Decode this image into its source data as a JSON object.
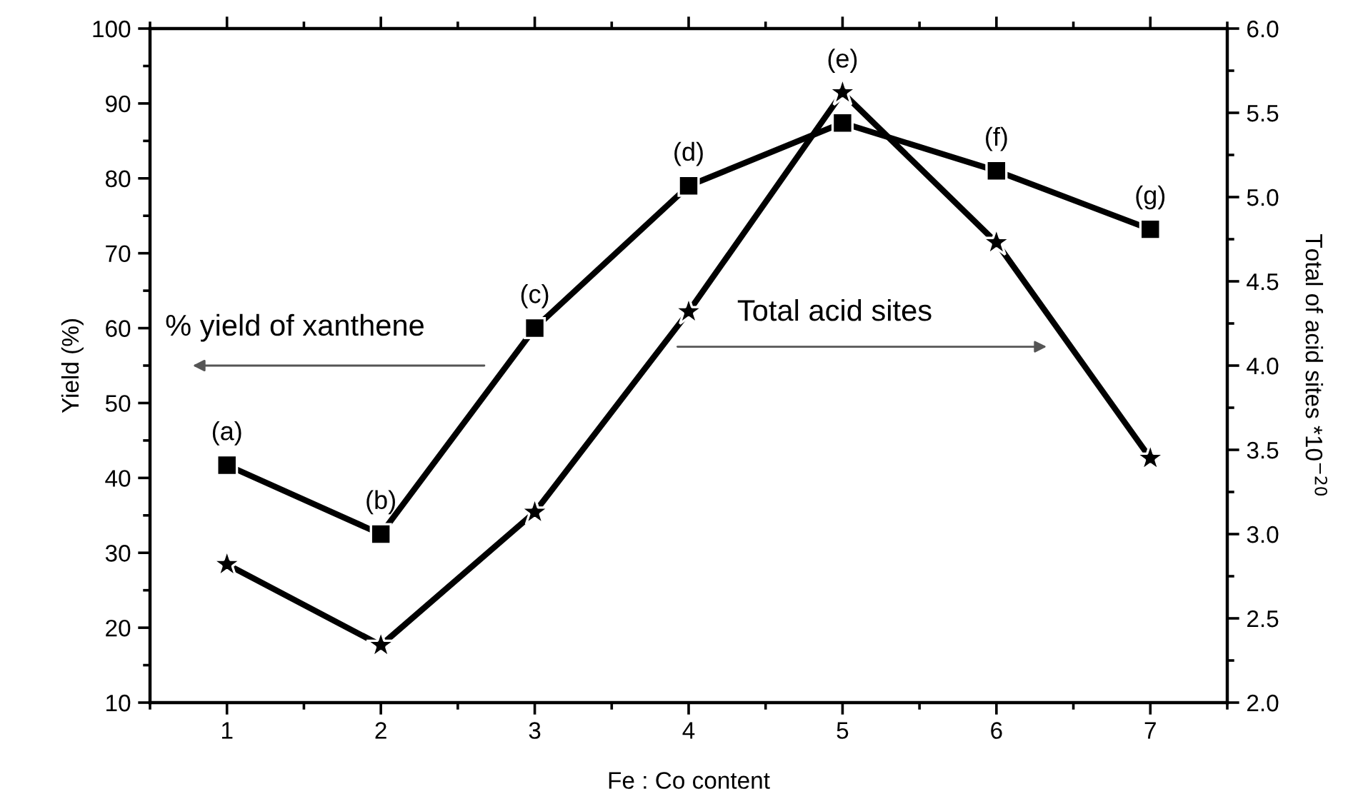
{
  "chart_data": {
    "type": "line",
    "xlabel": "Fe : Co content",
    "ylabel": "Yield (%)",
    "y2label": "Total of acid sites *10$^{−20}$",
    "x": [
      1,
      2,
      3,
      4,
      5,
      6,
      7
    ],
    "series": [
      {
        "color": "#000000",
        "marker": "square",
        "values": [
          41.7,
          32.5,
          60.0,
          79.0,
          87.4,
          81.0,
          73.2
        ]
      },
      {
        "color": "#000000",
        "marker": "star",
        "axis": "y2",
        "values": [
          2.82,
          2.34,
          3.13,
          4.32,
          5.62,
          4.73,
          3.45
        ]
      }
    ],
    "xlim": [
      0.5,
      7.5
    ],
    "xticks": [
      1,
      2,
      3,
      4,
      5,
      6,
      7
    ],
    "ylim": [
      10,
      100
    ],
    "yticks": [
      10,
      20,
      30,
      40,
      50,
      60,
      70,
      80,
      90,
      100
    ],
    "y2lim": [
      2.0,
      6.0
    ],
    "y2ticks": [
      {
        "value": 2.0,
        "label": "2.0"
      },
      {
        "value": 2.5,
        "label": "2.5"
      },
      {
        "value": 3.0,
        "label": "3.0"
      },
      {
        "value": 3.5,
        "label": "3.5"
      },
      {
        "value": 4.0,
        "label": "4.0"
      },
      {
        "value": 4.5,
        "label": "4.5"
      },
      {
        "value": 5.0,
        "label": "5.0"
      },
      {
        "value": 5.5,
        "label": "5.5"
      },
      {
        "value": 6.0,
        "label": "6.0"
      }
    ],
    "grid": false,
    "line_style": "solid",
    "annotations": [
      {
        "text": "(a)",
        "x": 1,
        "y": 41.7
      },
      {
        "text": "(b)",
        "x": 2,
        "y": 32.5
      },
      {
        "text": "(c)",
        "x": 3,
        "y": 60.0
      },
      {
        "text": "(d)",
        "x": 4,
        "y": 79.0
      },
      {
        "text": "(e)",
        "x": 5,
        "y": 87.4
      },
      {
        "text": "(f)",
        "x": 6,
        "y": 81.0
      },
      {
        "text": "(g)",
        "x": 7,
        "y": 73.2
      },
      "% yield of xanthene",
      "Total acid sites"
    ]
  }
}
